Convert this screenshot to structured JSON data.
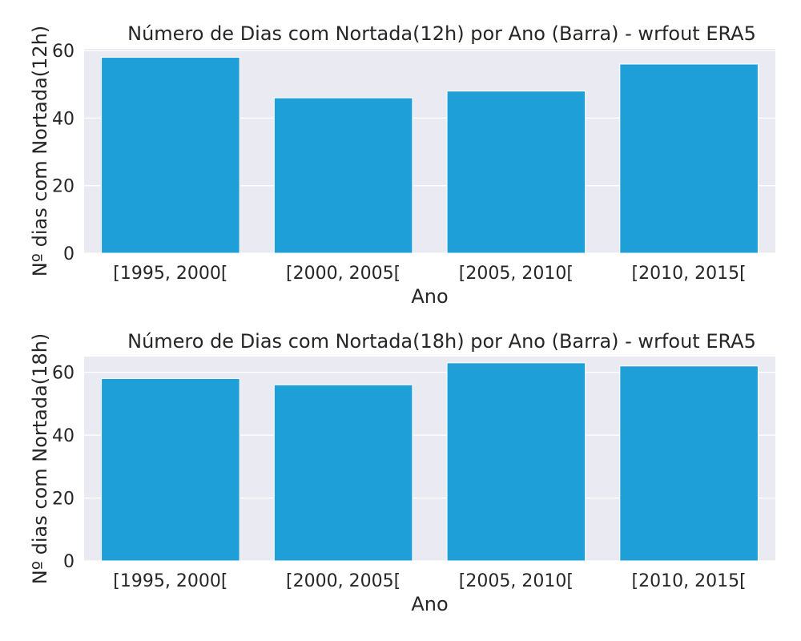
{
  "chart_data": [
    {
      "type": "bar",
      "title": "Número de Dias com Nortada(12h) por Ano (Barra) - wrfout ERA5",
      "xlabel": "Ano",
      "ylabel": "Nº dias com Nortada(12h)",
      "categories": [
        "[1995, 2000[",
        "[2000, 2005[",
        "[2005, 2010[",
        "[2010, 2015["
      ],
      "values": [
        58,
        46,
        48,
        56
      ],
      "ylim": [
        0,
        60.5
      ],
      "yticks": [
        0,
        20,
        40,
        60
      ],
      "grid": true,
      "bar_color": "#1f9fd8",
      "background": "#eaeaf2"
    },
    {
      "type": "bar",
      "title": "Número de Dias com Nortada(18h) por Ano (Barra) - wrfout ERA5",
      "xlabel": "Ano",
      "ylabel": "Nº dias com Nortada(18h)",
      "categories": [
        "[1995, 2000[",
        "[2000, 2005[",
        "[2005, 2010[",
        "[2010, 2015["
      ],
      "values": [
        58,
        56,
        63,
        62
      ],
      "ylim": [
        0,
        65
      ],
      "yticks": [
        0,
        20,
        40,
        60
      ],
      "grid": true,
      "bar_color": "#1f9fd8",
      "background": "#eaeaf2"
    }
  ]
}
